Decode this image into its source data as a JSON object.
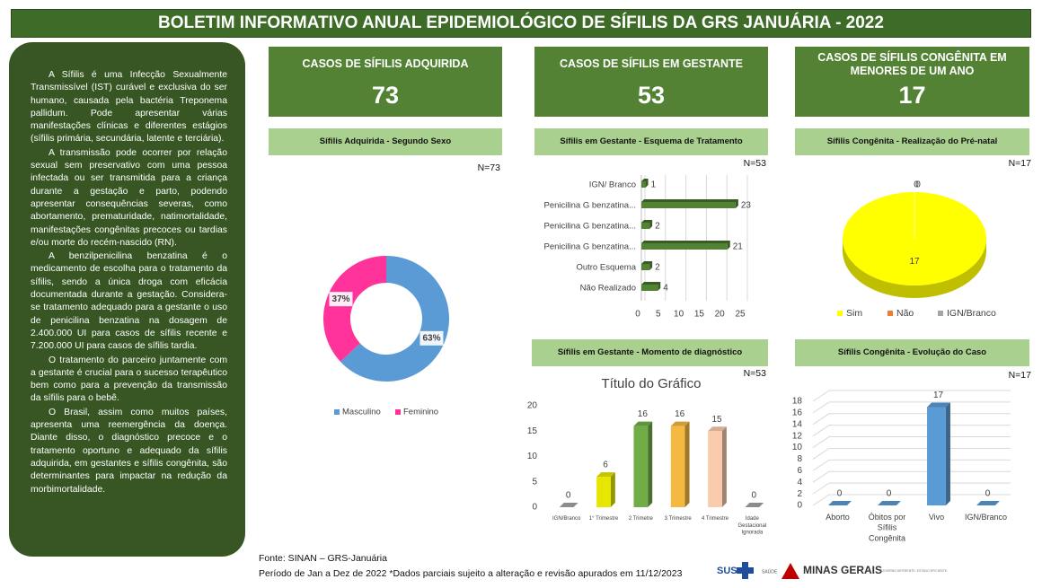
{
  "header": {
    "title": "BOLETIM INFORMATIVO ANUAL EPIDEMIOLÓGICO DE SÍFILIS DA GRS JANUÁRIA - 2022"
  },
  "sidebar": {
    "paragraphs": [
      "A Sífilis é uma Infecção Sexualmente Transmissível (IST) curável e exclusiva do ser humano, causada pela bactéria Treponema pallidum. Pode apresentar várias manifestações clínicas e diferentes estágios (sífilis primária, secundária, latente e terciária).",
      "A transmissão pode ocorrer por relação sexual sem preservativo com uma pessoa infectada ou ser transmitida para a criança durante a gestação e parto, podendo apresentar consequências severas, como abortamento, prematuridade, natimortalidade, manifestações congênitas precoces ou tardias e/ou morte do recém-nascido (RN).",
      "A benzilpenicilina benzatina é o medicamento de escolha para o tratamento da sífilis, sendo a única droga com eficácia documentada durante a gestação. Considera-se tratamento adequado para a gestante o uso de penicilina benzatina na dosagem de 2.400.000 UI para casos de sífilis recente e 7.200.000 UI para casos de sífilis tardia.",
      "O tratamento do parceiro juntamente com a gestante é crucial para o sucesso terapêutico bem como para a prevenção da transmissão da sífilis para o bebê.",
      "O Brasil, assim como muitos países, apresenta uma reemergência da doença. Diante disso, o diagnóstico precoce e o tratamento oportuno e adequado da sífilis adquirida, em gestantes e sífilis congênita, são determinantes para impactar na redução da morbimortalidade."
    ]
  },
  "kpis": [
    {
      "label": "CASOS DE SÍFILIS ADQUIRIDA",
      "value": 73
    },
    {
      "label": "CASOS DE SÍFILIS EM GESTANTE",
      "value": 53
    },
    {
      "label": "CASOS DE SÍFILIS CONGÊNITA EM MENORES DE UM ANO",
      "value": 17
    }
  ],
  "chart_data": [
    {
      "type": "donut",
      "title": "Sífilis Adquirida - Segundo Sexo",
      "note": "N=73",
      "categories": [
        "Masculino",
        "Feminino"
      ],
      "values": [
        63,
        37
      ],
      "value_labels": [
        "63%",
        "37%"
      ],
      "colors": [
        "#5b9bd5",
        "#ff3399"
      ]
    },
    {
      "type": "hbar",
      "title": "Sífilis em Gestante - Esquema de Tratamento",
      "note": "N=53",
      "categories": [
        "IGN/ Branco",
        "Penicilina G benzatina...",
        "Penicilina G benzatina...",
        "Penicilina G benzatina...",
        "Outro Esquema",
        "Não Realizado"
      ],
      "values": [
        1,
        23,
        2,
        21,
        2,
        4
      ],
      "color": "#548235",
      "xlim": [
        0,
        25
      ],
      "xticks": [
        0,
        5,
        10,
        15,
        20,
        25
      ],
      "grid": true
    },
    {
      "type": "pie3d",
      "title": "Sífilis Congênita - Realização do Pré-natal",
      "note": "N=17",
      "categories": [
        "Sim",
        "Não",
        "IGN/Branco"
      ],
      "values": [
        17,
        0,
        0
      ],
      "colors": [
        "#ffff00",
        "#ed7d31",
        "#a5a5a5"
      ]
    },
    {
      "type": "bar",
      "title": "Sífilis em Gestante - Momento de diagnóstico",
      "note": "N=53",
      "subtitle": "Título do Gráfico",
      "categories": [
        "IGN/Branco",
        "1° Trimestre",
        "2 Trimetre",
        "3 Trimestre",
        "4 Trimestre",
        "Idade Gestacional Ignorada"
      ],
      "values": [
        0,
        6,
        16,
        16,
        15,
        0
      ],
      "colors": [
        "#a5a5a5",
        "#e6e600",
        "#70ad47",
        "#f4b942",
        "#f8cbad",
        "#a5a5a5"
      ],
      "ylim": [
        0,
        20
      ],
      "yticks": [
        0,
        5,
        10,
        15,
        20
      ],
      "grid": false
    },
    {
      "type": "bar",
      "title": "Sífilis Congênita - Evolução do Caso",
      "note": "N=17",
      "categories": [
        "Aborto",
        "Óbitos por Sífilis Congênita",
        "Vivo",
        "IGN/Branco"
      ],
      "values": [
        0,
        0,
        17,
        0
      ],
      "color": "#5b9bd5",
      "ylim": [
        0,
        18
      ],
      "yticks": [
        0,
        2,
        4,
        6,
        8,
        10,
        12,
        14,
        16,
        18
      ],
      "grid": true
    }
  ],
  "footer": {
    "source": "Fonte: SINAN – GRS-Januária",
    "period": "Período de Jan a Dez de 2022 *Dados parciais sujeito a alteração e revisão apurados em 11/12/2023",
    "logos": [
      "SUS",
      "SAÚDE",
      "MINAS GERAIS",
      "GOVERNO DIFERENTE. ESTADO EFICIENTE."
    ]
  }
}
